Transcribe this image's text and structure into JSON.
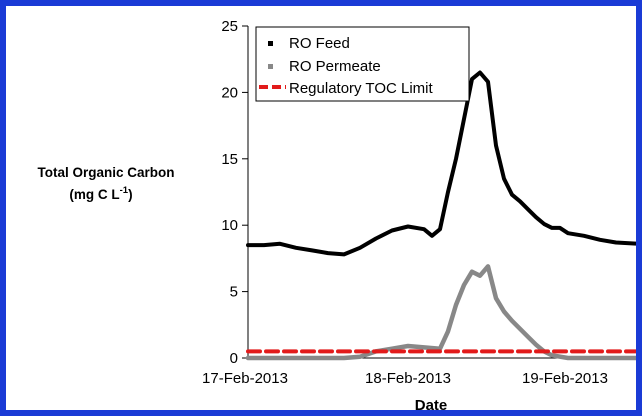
{
  "chart_data": {
    "type": "line",
    "title": "",
    "ylabel_line1": "Total Organic Carbon",
    "ylabel_line2": "(mg C L",
    "ylabel_sup": "-1",
    "ylabel_close": ")",
    "xlabel": "Date",
    "ylim": [
      0,
      25
    ],
    "yticks": [
      0,
      5,
      10,
      15,
      20,
      25
    ],
    "x_ticks": [
      "17-Feb-2013",
      "18-Feb-2013",
      "19-Feb-2013"
    ],
    "x_range_days": [
      0,
      2.45
    ],
    "x_note": "x values are days since 17-Feb-2013 00:00",
    "grid": false,
    "legend_position": "top-right inside plot",
    "series": [
      {
        "name": "RO Feed",
        "marker": "dot",
        "color": "#000000",
        "x": [
          0,
          0.1,
          0.2,
          0.3,
          0.4,
          0.5,
          0.6,
          0.7,
          0.8,
          0.9,
          1.0,
          1.1,
          1.15,
          1.2,
          1.25,
          1.3,
          1.35,
          1.4,
          1.45,
          1.5,
          1.55,
          1.6,
          1.65,
          1.7,
          1.75,
          1.8,
          1.85,
          1.9,
          1.95,
          2.0,
          2.1,
          2.2,
          2.3,
          2.45
        ],
        "y": [
          8.5,
          8.5,
          8.6,
          8.3,
          8.1,
          7.9,
          7.8,
          8.3,
          9.0,
          9.6,
          9.9,
          9.7,
          9.2,
          9.7,
          12.5,
          15.0,
          18.0,
          21.0,
          21.5,
          20.8,
          16.0,
          13.5,
          12.3,
          11.8,
          11.2,
          10.6,
          10.1,
          9.8,
          9.8,
          9.4,
          9.2,
          8.9,
          8.7,
          8.6
        ]
      },
      {
        "name": "RO Permeate",
        "marker": "square",
        "color": "#888888",
        "x": [
          0,
          0.6,
          0.7,
          0.8,
          0.9,
          1.0,
          1.1,
          1.2,
          1.25,
          1.3,
          1.35,
          1.4,
          1.45,
          1.5,
          1.55,
          1.6,
          1.65,
          1.7,
          1.75,
          1.8,
          1.85,
          1.9,
          2.0,
          2.45
        ],
        "y": [
          0,
          0,
          0.1,
          0.5,
          0.7,
          0.9,
          0.8,
          0.7,
          2.0,
          4.0,
          5.5,
          6.5,
          6.2,
          6.9,
          4.5,
          3.5,
          2.8,
          2.2,
          1.6,
          1.0,
          0.5,
          0.2,
          0,
          0
        ]
      },
      {
        "name": "Regulatory TOC Limit",
        "style": "dashed",
        "color": "#e21b1b",
        "x": [
          0,
          2.45
        ],
        "y": [
          0.5,
          0.5
        ]
      }
    ]
  }
}
